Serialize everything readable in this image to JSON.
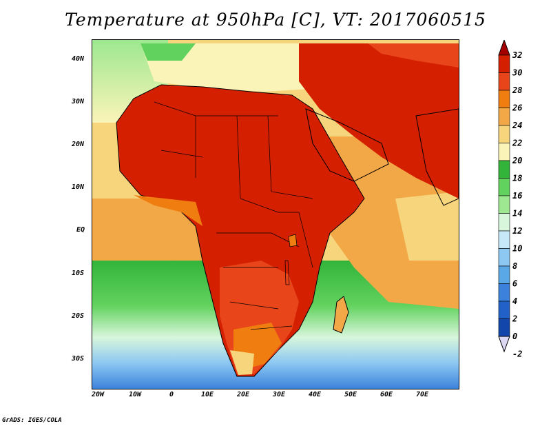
{
  "title": "Temperature at 950hPa [C], VT: 2017060515",
  "credit": "GrADS: IGES/COLA",
  "map": {
    "region": "Africa and Middle East",
    "variable": "Temperature",
    "level": "950hPa",
    "units": "C",
    "valid_time": "2017060515",
    "lat_labels": [
      "40N",
      "30N",
      "20N",
      "10N",
      "EQ",
      "10S",
      "20S",
      "30S"
    ],
    "lon_labels": [
      "20W",
      "10W",
      "0",
      "10E",
      "20E",
      "30E",
      "40E",
      "50E",
      "60E",
      "70E"
    ]
  },
  "colorbar": {
    "labels": [
      "32",
      "30",
      "28",
      "26",
      "24",
      "22",
      "20",
      "18",
      "16",
      "14",
      "12",
      "10",
      "8",
      "6",
      "4",
      "2",
      "0",
      "-2"
    ],
    "colors": [
      "#a50000",
      "#d42000",
      "#e8451a",
      "#f07d10",
      "#f3a848",
      "#f6d57d",
      "#fbf4b8",
      "#32b43a",
      "#62d25e",
      "#9de891",
      "#d8f6dc",
      "#c6e8f8",
      "#8cc8f2",
      "#5aa8e6",
      "#3c82dc",
      "#2262c8",
      "#1246aa",
      "#0a2a7a"
    ]
  }
}
